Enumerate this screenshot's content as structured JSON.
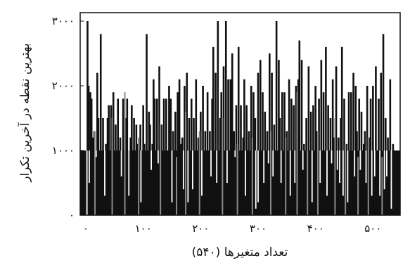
{
  "chart_data": {
    "type": "bar",
    "title": "",
    "xlabel": "تعداد متغیرها (۵۴۰)",
    "ylabel": "بهترین نقطه در آخرین تکرار",
    "xlim": [
      0,
      540
    ],
    "ylim": [
      0,
      3000
    ],
    "x_ticks": [
      0,
      100,
      200,
      300,
      400,
      500
    ],
    "x_tick_labels": [
      "۰",
      "۱۰۰",
      "۲۰۰",
      "۳۰۰",
      "۴۰۰",
      "۵۰۰"
    ],
    "y_ticks": [
      0,
      1000,
      2000,
      3000
    ],
    "y_tick_labels": [
      "۰",
      "۱۰۰۰",
      "۲۰۰۰",
      "۳۰۰۰"
    ],
    "grid": false,
    "bar_color": "#111111",
    "gap_color": "#ffffff",
    "baseline_value": 1000,
    "series": [
      {
        "values": [
          [
            3,
            3000
          ],
          [
            5,
            2000
          ],
          [
            8,
            1900
          ],
          [
            10,
            1800
          ],
          [
            12,
            1200
          ],
          [
            15,
            1300
          ],
          [
            20,
            2200
          ],
          [
            22,
            1500
          ],
          [
            26,
            2800
          ],
          [
            30,
            1500
          ],
          [
            35,
            1100
          ],
          [
            38,
            1500
          ],
          [
            40,
            1700
          ],
          [
            44,
            1700
          ],
          [
            48,
            1900
          ],
          [
            52,
            1400
          ],
          [
            56,
            1800
          ],
          [
            60,
            1200
          ],
          [
            65,
            1800
          ],
          [
            70,
            1500
          ],
          [
            72,
            1800
          ],
          [
            78,
            1200
          ],
          [
            80,
            1700
          ],
          [
            84,
            1500
          ],
          [
            88,
            1400
          ],
          [
            90,
            1100
          ],
          [
            95,
            1400
          ],
          [
            100,
            1700
          ],
          [
            102,
            1100
          ],
          [
            106,
            2800
          ],
          [
            110,
            1600
          ],
          [
            112,
            1400
          ],
          [
            116,
            1100
          ],
          [
            118,
            2100
          ],
          [
            120,
            1800
          ],
          [
            124,
            1800
          ],
          [
            128,
            2300
          ],
          [
            132,
            1400
          ],
          [
            136,
            1800
          ],
          [
            140,
            1800
          ],
          [
            145,
            2000
          ],
          [
            148,
            1800
          ],
          [
            152,
            1300
          ],
          [
            156,
            1600
          ],
          [
            160,
            1900
          ],
          [
            163,
            2100
          ],
          [
            166,
            1100
          ],
          [
            168,
            1200
          ],
          [
            172,
            2000
          ],
          [
            176,
            2200
          ],
          [
            180,
            1500
          ],
          [
            184,
            1800
          ],
          [
            188,
            1500
          ],
          [
            192,
            2100
          ],
          [
            196,
            1200
          ],
          [
            200,
            1600
          ],
          [
            204,
            2000
          ],
          [
            208,
            1300
          ],
          [
            212,
            1900
          ],
          [
            216,
            1300
          ],
          [
            220,
            1800
          ],
          [
            222,
            2600
          ],
          [
            226,
            2200
          ],
          [
            230,
            3000
          ],
          [
            234,
            1500
          ],
          [
            236,
            1900
          ],
          [
            240,
            2300
          ],
          [
            244,
            3000
          ],
          [
            248,
            2100
          ],
          [
            252,
            2100
          ],
          [
            255,
            2500
          ],
          [
            258,
            1300
          ],
          [
            262,
            1700
          ],
          [
            266,
            2600
          ],
          [
            270,
            1700
          ],
          [
            274,
            1200
          ],
          [
            276,
            2100
          ],
          [
            280,
            1700
          ],
          [
            284,
            1300
          ],
          [
            288,
            2000
          ],
          [
            292,
            1900
          ],
          [
            295,
            1500
          ],
          [
            300,
            2200
          ],
          [
            304,
            2400
          ],
          [
            308,
            1900
          ],
          [
            312,
            1600
          ],
          [
            316,
            1300
          ],
          [
            320,
            2500
          ],
          [
            324,
            2200
          ],
          [
            328,
            1400
          ],
          [
            332,
            3000
          ],
          [
            336,
            2400
          ],
          [
            338,
            1500
          ],
          [
            342,
            1900
          ],
          [
            346,
            1900
          ],
          [
            350,
            1300
          ],
          [
            354,
            2100
          ],
          [
            358,
            1800
          ],
          [
            362,
            1700
          ],
          [
            366,
            2000
          ],
          [
            370,
            2100
          ],
          [
            372,
            2700
          ],
          [
            376,
            2400
          ],
          [
            380,
            1100
          ],
          [
            384,
            1500
          ],
          [
            388,
            2300
          ],
          [
            392,
            1600
          ],
          [
            396,
            1700
          ],
          [
            400,
            2000
          ],
          [
            402,
            1300
          ],
          [
            406,
            1800
          ],
          [
            410,
            2400
          ],
          [
            414,
            1900
          ],
          [
            418,
            2600
          ],
          [
            422,
            1700
          ],
          [
            426,
            1500
          ],
          [
            430,
            2100
          ],
          [
            432,
            1200
          ],
          [
            436,
            2300
          ],
          [
            440,
            1200
          ],
          [
            444,
            1500
          ],
          [
            446,
            2600
          ],
          [
            450,
            1800
          ],
          [
            454,
            1100
          ],
          [
            458,
            1900
          ],
          [
            462,
            1900
          ],
          [
            466,
            2200
          ],
          [
            470,
            2000
          ],
          [
            472,
            1300
          ],
          [
            476,
            1800
          ],
          [
            480,
            1600
          ],
          [
            484,
            1100
          ],
          [
            486,
            1300
          ],
          [
            490,
            2000
          ],
          [
            493,
            1200
          ],
          [
            496,
            1800
          ],
          [
            500,
            2000
          ],
          [
            505,
            2300
          ],
          [
            510,
            1800
          ],
          [
            514,
            2200
          ],
          [
            518,
            2800
          ],
          [
            522,
            1500
          ],
          [
            526,
            1200
          ],
          [
            530,
            2100
          ],
          [
            535,
            1100
          ]
        ],
        "dips": [
          [
            2,
            0
          ],
          [
            6,
            500
          ],
          [
            18,
            900
          ],
          [
            33,
            300
          ],
          [
            62,
            600
          ],
          [
            75,
            300
          ],
          [
            96,
            200
          ],
          [
            114,
            700
          ],
          [
            126,
            800
          ],
          [
            150,
            200
          ],
          [
            170,
            400
          ],
          [
            178,
            200
          ],
          [
            186,
            400
          ],
          [
            202,
            300
          ],
          [
            218,
            600
          ],
          [
            228,
            500
          ],
          [
            246,
            500
          ],
          [
            260,
            900
          ],
          [
            278,
            300
          ],
          [
            296,
            100
          ],
          [
            300,
            200
          ],
          [
            310,
            500
          ],
          [
            318,
            800
          ],
          [
            326,
            600
          ],
          [
            340,
            500
          ],
          [
            356,
            300
          ],
          [
            364,
            500
          ],
          [
            378,
            700
          ],
          [
            394,
            200
          ],
          [
            408,
            500
          ],
          [
            420,
            300
          ],
          [
            428,
            800
          ],
          [
            438,
            700
          ],
          [
            442,
            500
          ],
          [
            448,
            300
          ],
          [
            456,
            200
          ],
          [
            468,
            600
          ],
          [
            478,
            700
          ],
          [
            488,
            500
          ],
          [
            498,
            300
          ],
          [
            503,
            600
          ],
          [
            512,
            300
          ],
          [
            520,
            400
          ],
          [
            524,
            600
          ],
          [
            532,
            100
          ]
        ],
        "gray_bars": [
          [
            16,
            1300
          ],
          [
            46,
            1500
          ],
          [
            68,
            1900
          ],
          [
            92,
            1200
          ],
          [
            130,
            1400
          ],
          [
            158,
            900
          ],
          [
            174,
            1600
          ],
          [
            198,
            1300
          ],
          [
            238,
            1500
          ],
          [
            264,
            1100
          ],
          [
            290,
            1200
          ],
          [
            322,
            1300
          ],
          [
            348,
            1200
          ],
          [
            368,
            1900
          ],
          [
            386,
            1000
          ],
          [
            404,
            1300
          ],
          [
            434,
            1500
          ],
          [
            452,
            1100
          ],
          [
            474,
            900
          ],
          [
            492,
            1200
          ],
          [
            516,
            900
          ]
        ]
      }
    ]
  }
}
